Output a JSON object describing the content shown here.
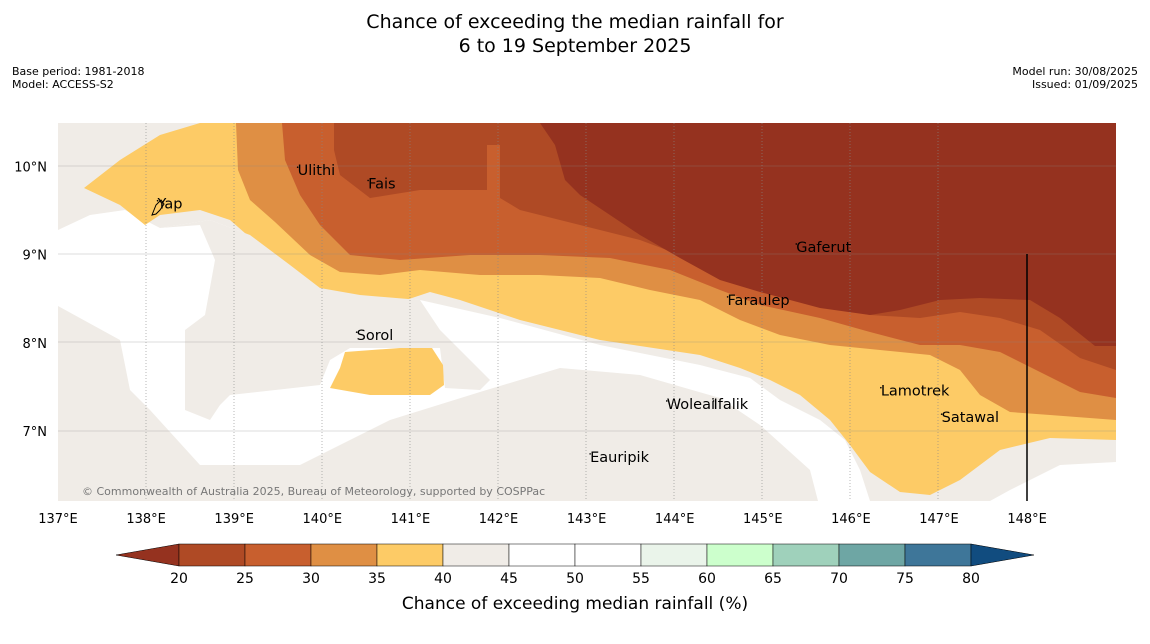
{
  "title_line1": "Chance of exceeding the median rainfall for",
  "title_line2": "6 to 19 September 2025",
  "meta": {
    "base_period": "Base period: 1981-2018",
    "model": "Model: ACCESS-S2",
    "model_run": "Model run: 30/08/2025",
    "issued": "Issued: 01/09/2025"
  },
  "copyright": "© Commonwealth of Australia 2025, Bureau of Meteorology, supported by COSPPac",
  "axes": {
    "lon_ticks": [
      "137°E",
      "138°E",
      "139°E",
      "140°E",
      "141°E",
      "142°E",
      "143°E",
      "144°E",
      "145°E",
      "146°E",
      "147°E",
      "148°E"
    ],
    "lat_ticks": [
      "10°N",
      "9°N",
      "8°N",
      "7°N"
    ],
    "lon_range": [
      137,
      149
    ],
    "lat_range": [
      6.2,
      10.5
    ]
  },
  "places": [
    {
      "name": "Ulithi",
      "lon": 139.72,
      "lat": 9.9
    },
    {
      "name": "Fais",
      "lon": 140.52,
      "lat": 9.75
    },
    {
      "name": "Yap",
      "lon": 138.13,
      "lat": 9.52
    },
    {
      "name": "Gaferut",
      "lon": 145.38,
      "lat": 9.03
    },
    {
      "name": "Faraulep",
      "lon": 144.6,
      "lat": 8.43
    },
    {
      "name": "Sorol",
      "lon": 140.39,
      "lat": 8.03
    },
    {
      "name": "Lamotrek",
      "lon": 146.34,
      "lat": 7.4
    },
    {
      "name": "Woleai",
      "lon": 143.91,
      "lat": 7.25
    },
    {
      "name": "Ifalik",
      "lon": 144.44,
      "lat": 7.25
    },
    {
      "name": "Satawal",
      "lon": 147.03,
      "lat": 7.1
    },
    {
      "name": "Eauripik",
      "lon": 143.04,
      "lat": 6.65
    }
  ],
  "colorbar": {
    "label": "Chance of exceeding median rainfall (%)",
    "ticks": [
      "20",
      "25",
      "30",
      "35",
      "40",
      "45",
      "50",
      "55",
      "60",
      "65",
      "70",
      "75",
      "80"
    ],
    "colors": [
      "#af4a25",
      "#c85f2e",
      "#df8f44",
      "#fdcb66",
      "#f0ece7",
      "#ffffff",
      "#ffffff",
      "#eaf4ea",
      "#ccffcc",
      "#9fd1bb",
      "#6ea6a4",
      "#3e7699"
    ],
    "under_color": "#95321f",
    "over_color": "#114c7f"
  },
  "map_colors": {
    "lt20": "#95321f",
    "20_25": "#af4a25",
    "25_30": "#c85f2e",
    "30_35": "#df8f44",
    "35_40": "#fdcb66",
    "40_45": "#f0ece7",
    "55_60": "#eaf4ea"
  }
}
